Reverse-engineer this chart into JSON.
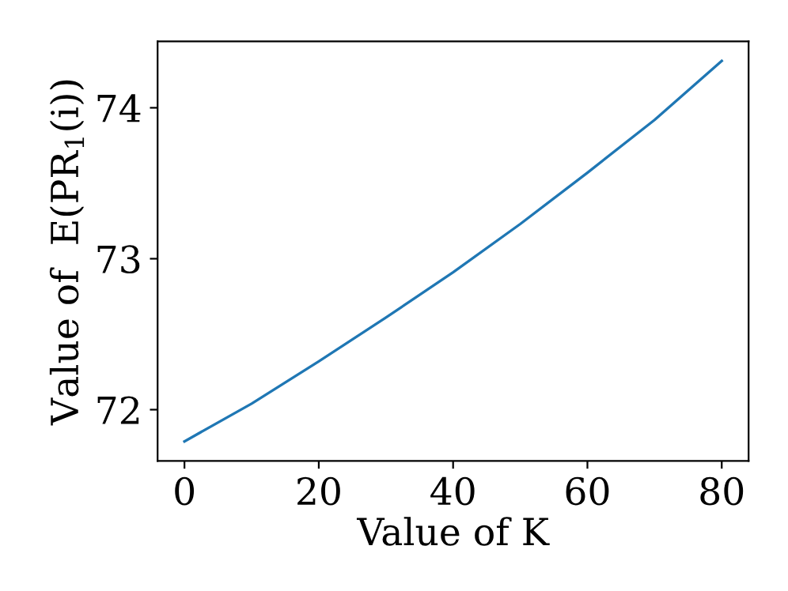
{
  "chart_data": {
    "type": "line",
    "xlabel": "Value of K",
    "ylabel": "Value of  E(PR$_{1}$(i))",
    "x": [
      0,
      10,
      20,
      30,
      40,
      50,
      60,
      70,
      80
    ],
    "series": [
      {
        "color": "#1f77b4",
        "values": [
          71.79,
          72.04,
          72.32,
          72.61,
          72.91,
          73.23,
          73.57,
          73.92,
          74.31
        ]
      }
    ],
    "xlim": [
      -4,
      84
    ],
    "ylim": [
      71.66,
      74.44
    ],
    "xticks": [
      0,
      20,
      40,
      60,
      80
    ],
    "yticks": [
      72,
      73,
      74
    ],
    "grid": false,
    "legend": false,
    "marker": "none",
    "line_style": "solid"
  }
}
